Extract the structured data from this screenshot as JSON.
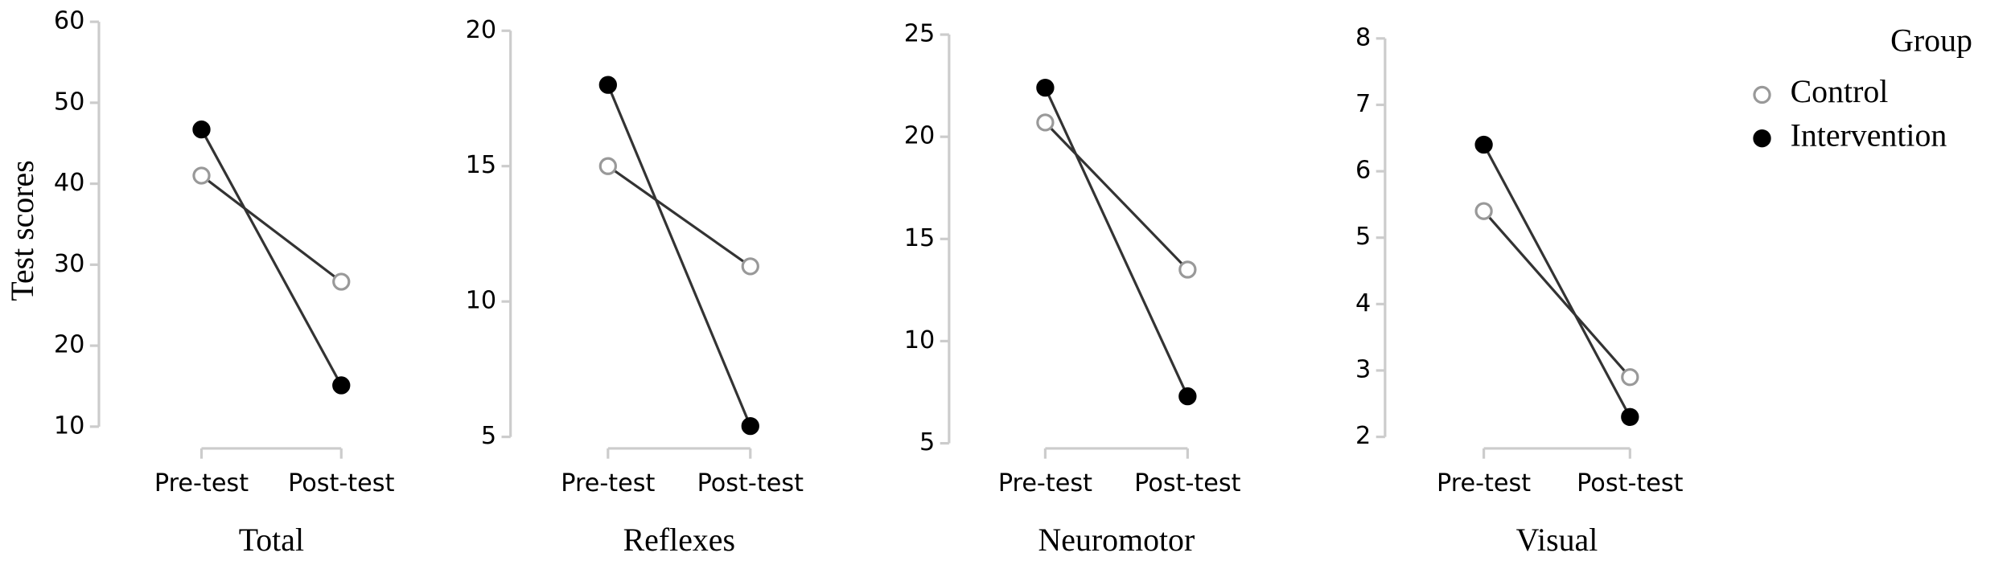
{
  "chart_data": [
    {
      "type": "line",
      "y_label": "Test scores",
      "x_label": "Total",
      "categories": [
        "Pre-test",
        "Post-test"
      ],
      "series": [
        {
          "name": "Control",
          "color": "#ffffff",
          "values": [
            41,
            27.9
          ]
        },
        {
          "name": "Intervention",
          "color": "#000000",
          "values": [
            46.7,
            15.1
          ]
        }
      ],
      "ylim": [
        10,
        60
      ],
      "yticks": [
        10,
        20,
        30,
        40,
        50,
        60
      ]
    },
    {
      "type": "line",
      "x_label": "Reflexes",
      "categories": [
        "Pre-test",
        "Post-test"
      ],
      "series": [
        {
          "name": "Control",
          "color": "#ffffff",
          "values": [
            15,
            11.3
          ]
        },
        {
          "name": "Intervention",
          "color": "#000000",
          "values": [
            18,
            5.4
          ]
        }
      ],
      "ylim": [
        5,
        20
      ],
      "yticks": [
        5,
        10,
        15,
        20
      ]
    },
    {
      "type": "line",
      "x_label": "Neuromotor",
      "categories": [
        "Pre-test",
        "Post-test"
      ],
      "series": [
        {
          "name": "Control",
          "color": "#ffffff",
          "values": [
            20.7,
            13.5
          ]
        },
        {
          "name": "Intervention",
          "color": "#000000",
          "values": [
            22.4,
            7.3
          ]
        }
      ],
      "ylim": [
        5,
        25
      ],
      "yticks": [
        5,
        10,
        15,
        20,
        25
      ]
    },
    {
      "type": "line",
      "x_label": "Visual",
      "categories": [
        "Pre-test",
        "Post-test"
      ],
      "series": [
        {
          "name": "Control",
          "color": "#ffffff",
          "values": [
            5.4,
            2.9
          ]
        },
        {
          "name": "Intervention",
          "color": "#000000",
          "values": [
            6.4,
            2.3
          ]
        }
      ],
      "ylim": [
        2,
        8
      ],
      "yticks": [
        2,
        3,
        4,
        5,
        6,
        7,
        8
      ],
      "legend_title": "Group",
      "legend": "top-right"
    }
  ]
}
